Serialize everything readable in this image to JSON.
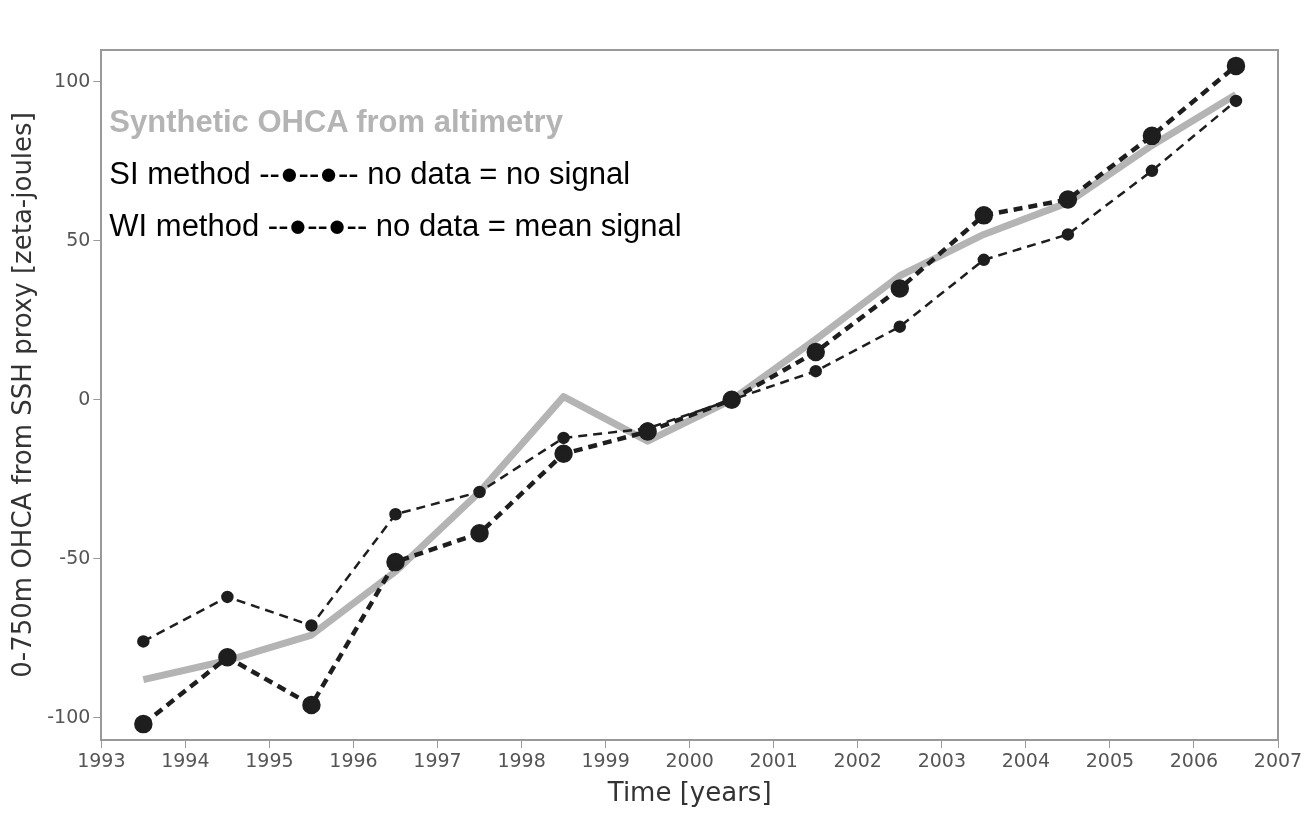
{
  "chart_data": {
    "type": "line",
    "xlabel": "Time [years]",
    "ylabel": "0-750m OHCA from SSH proxy [zeta-joules]",
    "x": [
      1993.5,
      1994.5,
      1995.5,
      1996.5,
      1997.5,
      1998.5,
      1999.5,
      2000.5,
      2001.5,
      2002.5,
      2003.5,
      2004.5,
      2005.5,
      2006.5
    ],
    "series": [
      {
        "color": "#b4b4b4",
        "values": [
          -88,
          -82,
          -74,
          -54,
          -29,
          1,
          -13,
          0,
          19,
          39,
          52,
          62,
          80,
          96
        ],
        "marker": "none",
        "line_style": "solid"
      },
      {
        "color": "#1e1e1e",
        "values": [
          -76,
          -62,
          -71,
          -36,
          -29,
          -12,
          -9,
          0,
          9,
          23,
          44,
          52,
          72,
          94
        ],
        "marker": "circle",
        "line_style": "dashed"
      },
      {
        "color": "#1e1e1e",
        "values": [
          -102,
          -81,
          -96,
          -51,
          -42,
          -17,
          -10,
          0,
          15,
          35,
          58,
          63,
          83,
          105
        ],
        "marker": "circle",
        "line_style": "dashed"
      }
    ],
    "annotations": [
      "Synthetic OHCA from altimetry",
      "SI method --●--●-- no data = no signal",
      "WI method --●--●-- no data = mean signal"
    ],
    "xlim": [
      1993,
      2007
    ],
    "xticks": [
      1993,
      1994,
      1995,
      1996,
      1997,
      1998,
      1999,
      2000,
      2001,
      2002,
      2003,
      2004,
      2005,
      2006,
      2007
    ],
    "ylim": [
      -107,
      110
    ],
    "yticks": [
      -100,
      -50,
      0,
      50,
      100
    ],
    "grid": false,
    "legend": false
  }
}
